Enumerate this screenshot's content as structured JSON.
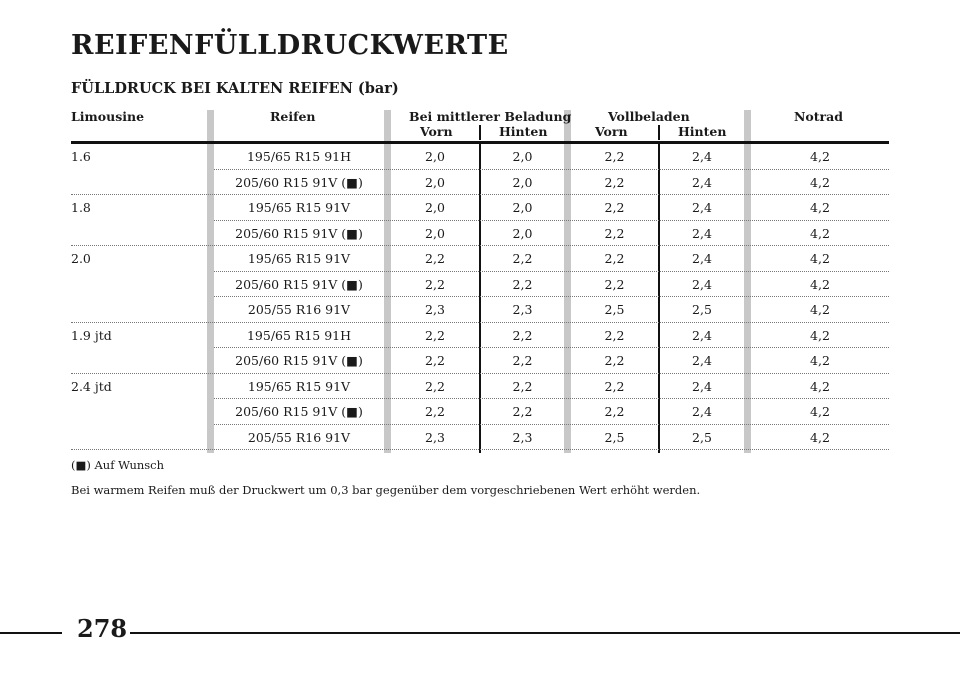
{
  "page": {
    "title": "REIFENFÜLLDRUCKWERTE",
    "subtitle": "FÜLLDRUCK BEI KALTEN REIFEN (bar)",
    "page_number": "278"
  },
  "table": {
    "headers": {
      "limousine": "Limousine",
      "reifen": "Reifen",
      "mittlere": "Bei mittlerer Beladung",
      "vollbeladen": "Vollbeladen",
      "notrad": "Notrad",
      "vorn1": "Vorn",
      "hinten1": "Hinten",
      "vorn2": "Vorn",
      "hinten2": "Hinten"
    },
    "rows": [
      {
        "model": "1.6",
        "tyre": "195/65 R15 91H",
        "m_vorn": "2,0",
        "m_hinten": "2,0",
        "v_vorn": "2,2",
        "v_hinten": "2,4",
        "notrad": "4,2"
      },
      {
        "model": "",
        "tyre": "205/60 R15 91V (■)",
        "m_vorn": "2,0",
        "m_hinten": "2,0",
        "v_vorn": "2,2",
        "v_hinten": "2,4",
        "notrad": "4,2"
      },
      {
        "model": "1.8",
        "tyre": "195/65 R15 91V",
        "m_vorn": "2,0",
        "m_hinten": "2,0",
        "v_vorn": "2,2",
        "v_hinten": "2,4",
        "notrad": "4,2"
      },
      {
        "model": "",
        "tyre": "205/60 R15 91V (■)",
        "m_vorn": "2,0",
        "m_hinten": "2,0",
        "v_vorn": "2,2",
        "v_hinten": "2,4",
        "notrad": "4,2"
      },
      {
        "model": "2.0",
        "tyre": "195/65 R15 91V",
        "m_vorn": "2,2",
        "m_hinten": "2,2",
        "v_vorn": "2,2",
        "v_hinten": "2,4",
        "notrad": "4,2"
      },
      {
        "model": "",
        "tyre": "205/60 R15 91V (■)",
        "m_vorn": "2,2",
        "m_hinten": "2,2",
        "v_vorn": "2,2",
        "v_hinten": "2,4",
        "notrad": "4,2"
      },
      {
        "model": "",
        "tyre": "205/55 R16 91V",
        "m_vorn": "2,3",
        "m_hinten": "2,3",
        "v_vorn": "2,5",
        "v_hinten": "2,5",
        "notrad": "4,2"
      },
      {
        "model": "1.9 jtd",
        "tyre": "195/65 R15 91H",
        "m_vorn": "2,2",
        "m_hinten": "2,2",
        "v_vorn": "2,2",
        "v_hinten": "2,4",
        "notrad": "4,2"
      },
      {
        "model": "",
        "tyre": "205/60 R15 91V (■)",
        "m_vorn": "2,2",
        "m_hinten": "2,2",
        "v_vorn": "2,2",
        "v_hinten": "2,4",
        "notrad": "4,2"
      },
      {
        "model": "2.4 jtd",
        "tyre": "195/65 R15 91V",
        "m_vorn": "2,2",
        "m_hinten": "2,2",
        "v_vorn": "2,2",
        "v_hinten": "2,4",
        "notrad": "4,2"
      },
      {
        "model": "",
        "tyre": "205/60 R15 91V (■)",
        "m_vorn": "2,2",
        "m_hinten": "2,2",
        "v_vorn": "2,2",
        "v_hinten": "2,4",
        "notrad": "4,2"
      },
      {
        "model": "",
        "tyre": "205/55 R16 91V",
        "m_vorn": "2,3",
        "m_hinten": "2,3",
        "v_vorn": "2,5",
        "v_hinten": "2,5",
        "notrad": "4,2"
      }
    ]
  },
  "notes": {
    "footnote": "(■) Auf Wunsch",
    "warm_note": "Bei warmem Reifen muß der Druckwert um 0,3 bar gegenüber dem vorgeschriebenen Wert erhöht werden."
  }
}
